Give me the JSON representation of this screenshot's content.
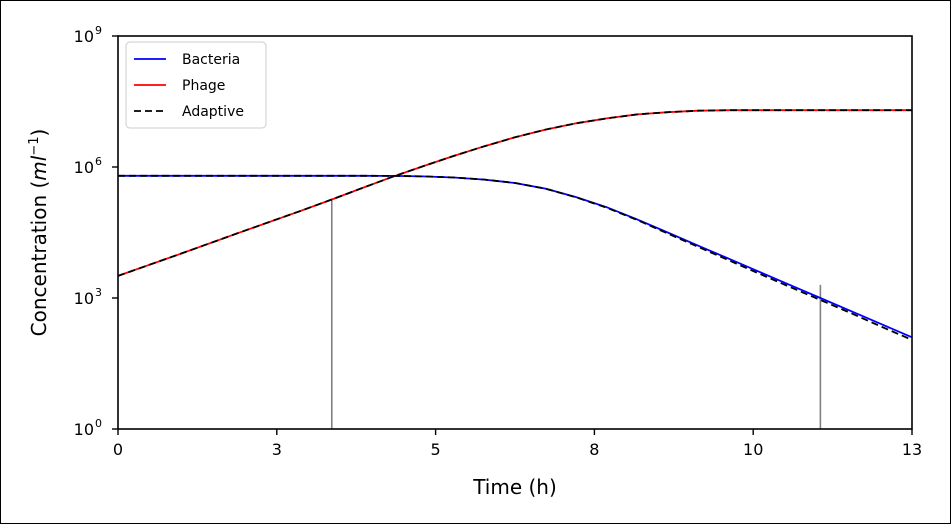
{
  "chart_data": {
    "type": "line",
    "title": "",
    "xlabel": "Time (h)",
    "ylabel": {
      "base": "Concentration (",
      "italic": "ml",
      "sup": "−1",
      "close": ")"
    },
    "xlim": [
      0,
      13
    ],
    "ylim_log10": [
      0,
      9
    ],
    "y_scale": "log",
    "grid": false,
    "legend_position": "top-left",
    "x_tick_values": [
      0,
      2.6,
      5.2,
      7.8,
      10.4,
      13
    ],
    "x_tick_labels": [
      "0",
      "3",
      "5",
      "8",
      "10",
      "13"
    ],
    "y_ticks": [
      {
        "value": 1,
        "base": "10",
        "exp": "0"
      },
      {
        "value": 1000,
        "base": "10",
        "exp": "3"
      },
      {
        "value": 1000000,
        "base": "10",
        "exp": "6"
      },
      {
        "value": 1000000000,
        "base": "10",
        "exp": "9"
      }
    ],
    "series": [
      {
        "name": "Bacteria",
        "color": "#0000ff",
        "dash": "solid",
        "x": [
          0,
          1,
          2,
          3,
          4,
          4.5,
          5,
          5.5,
          6,
          6.5,
          7,
          7.5,
          8,
          8.5,
          9,
          9.5,
          10,
          10.5,
          11,
          11.5,
          12,
          12.5,
          13
        ],
        "y": [
          630000,
          630000,
          630000,
          630000,
          630000,
          625000,
          610000,
          575000,
          515000,
          430000,
          320000,
          205000,
          120000,
          63000,
          31600,
          15800,
          7940,
          3980,
          2000,
          1000,
          500,
          251,
          126
        ]
      },
      {
        "name": "Phage",
        "color": "#ff0000",
        "dash": "solid",
        "x": [
          0,
          1,
          2,
          3,
          3.5,
          4,
          4.5,
          5,
          5.5,
          6,
          6.5,
          7,
          7.5,
          8,
          8.5,
          9,
          9.5,
          10,
          10.5,
          11,
          12,
          13
        ],
        "y": [
          3200,
          10000,
          32000,
          100000,
          180000,
          330000,
          600000,
          1050000,
          1800000,
          3000000,
          4800000,
          7200000,
          10000000,
          13000000,
          16000000,
          18000000,
          19500000,
          20000000,
          20000000,
          20000000,
          20000000,
          20000000
        ]
      },
      {
        "name": "Adaptive",
        "color": "#000000",
        "dash": "dashed",
        "x": [
          0,
          1,
          2,
          3,
          3.5,
          4,
          4.5,
          5,
          5.5,
          6,
          6.5,
          7,
          7.5,
          8,
          8.5,
          9,
          9.5,
          10,
          10.5,
          11,
          11.5,
          12,
          12.5,
          13
        ],
        "y": [
          3200,
          10000,
          32000,
          100000,
          180000,
          330000,
          600000,
          1050000,
          1800000,
          3000000,
          4800000,
          7200000,
          10000000,
          13000000,
          16000000,
          18000000,
          19500000,
          20000000,
          20000000,
          20000000,
          20000000,
          20000000,
          20000000,
          20000000
        ],
        "x2": [
          0,
          1,
          2,
          3,
          4,
          4.5,
          5,
          5.5,
          6,
          6.5,
          7,
          7.5,
          8,
          8.5,
          9,
          9.5,
          10,
          10.5,
          11,
          11.5,
          12,
          12.5,
          13
        ],
        "y2": [
          630000,
          630000,
          630000,
          630000,
          630000,
          625000,
          610000,
          575000,
          515000,
          430000,
          318000,
          202000,
          117000,
          61000,
          30000,
          14800,
          7300,
          3600,
          1800,
          900,
          450,
          220,
          110
        ]
      }
    ],
    "markers": [
      {
        "x": 3.5,
        "y": 180000,
        "color": "#808080"
      },
      {
        "x": 11.5,
        "y": 2000,
        "color": "#808080"
      }
    ]
  }
}
